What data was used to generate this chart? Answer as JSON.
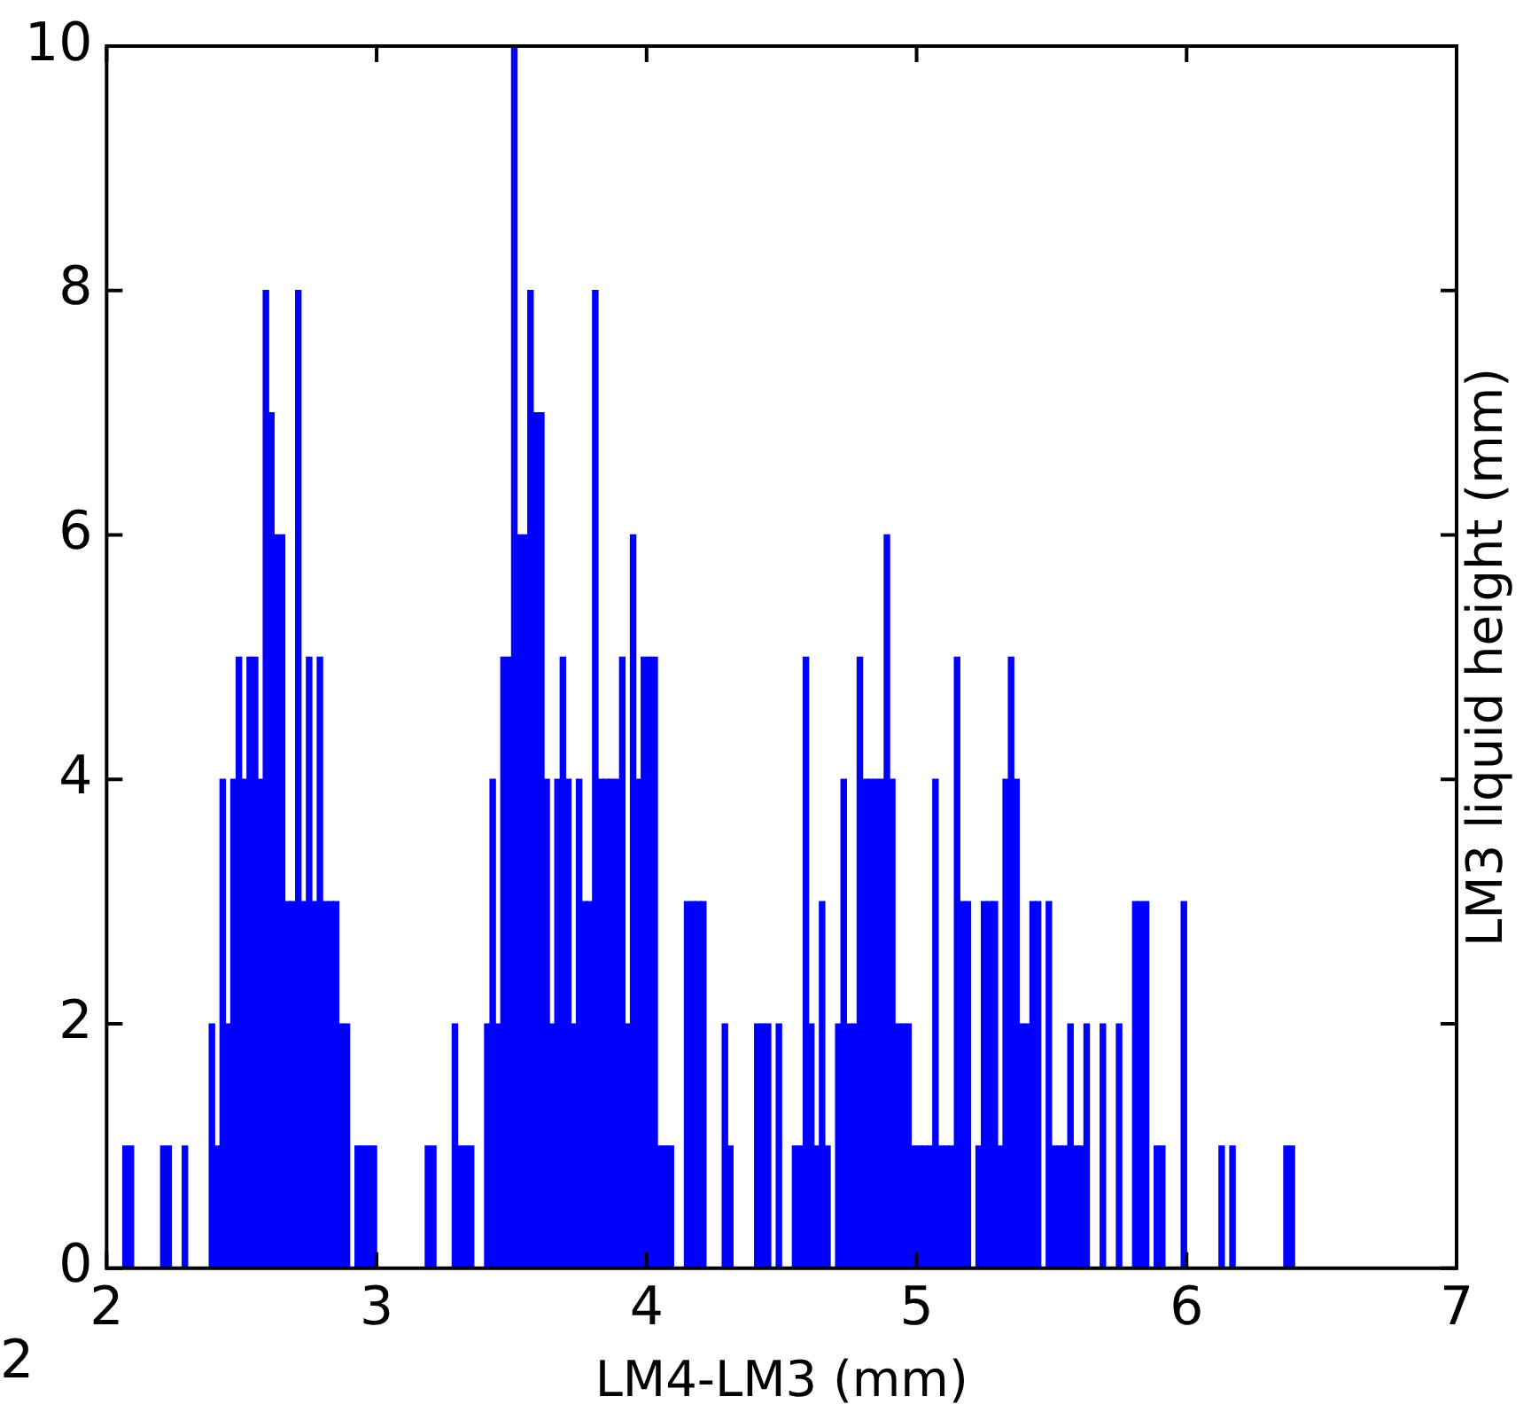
{
  "chart_data": {
    "type": "histogram",
    "xlabel": "LM4-LM3 (mm)",
    "ylabel": "LM3 liquid height (mm)",
    "color": "#0000ff",
    "bins": [
      2.0,
      2.02,
      2.04,
      2.06,
      2.08,
      2.1,
      2.12,
      2.14,
      2.16,
      2.18,
      2.2,
      2.22,
      2.24,
      2.26,
      2.28,
      2.3,
      2.32,
      2.34,
      2.36,
      2.38,
      2.4,
      2.42,
      2.44,
      2.46,
      2.48,
      2.5,
      2.52,
      2.54,
      2.56,
      2.58,
      2.6,
      2.62,
      2.64,
      2.66,
      2.68,
      2.7,
      2.72,
      2.74,
      2.76,
      2.78,
      2.8,
      2.82,
      2.84,
      2.86,
      2.88,
      2.9,
      2.92,
      2.94,
      2.96,
      2.98,
      3.0,
      3.02,
      3.04,
      3.06,
      3.08,
      3.1,
      3.12,
      3.14,
      3.16,
      3.18,
      3.2,
      3.22,
      3.24,
      3.26,
      3.28,
      3.3,
      3.32,
      3.34,
      3.36,
      3.38,
      3.4,
      3.42,
      3.44,
      3.46,
      3.48,
      3.5,
      3.52,
      3.54,
      3.56,
      3.58,
      3.6,
      3.62,
      3.64,
      3.66,
      3.68,
      3.7,
      3.72,
      3.74,
      3.76,
      3.78,
      3.8,
      3.82,
      3.84,
      3.86,
      3.88,
      3.9,
      3.92,
      3.94,
      3.96,
      3.98,
      4.0,
      4.02,
      4.04,
      4.06,
      4.08,
      4.1,
      4.12,
      4.14,
      4.16,
      4.18,
      4.2,
      4.22,
      4.24,
      4.26,
      4.28,
      4.3,
      4.32,
      4.34,
      4.36,
      4.38,
      4.4,
      4.42,
      4.44,
      4.46,
      4.48,
      4.5,
      4.52,
      4.54,
      4.56,
      4.58,
      4.6,
      4.62,
      4.64,
      4.66,
      4.68,
      4.7,
      4.72,
      4.74,
      4.76,
      4.78,
      4.8,
      4.82,
      4.84,
      4.86,
      4.88,
      4.9,
      4.92,
      4.94,
      4.96,
      4.98,
      5.0,
      5.02,
      5.04,
      5.06,
      5.08,
      5.1,
      5.12,
      5.14,
      5.16,
      5.18,
      5.2,
      5.22,
      5.24,
      5.26,
      5.28,
      5.3,
      5.32,
      5.34,
      5.36,
      5.38,
      5.4,
      5.42,
      5.44,
      5.46,
      5.48,
      5.5,
      5.52,
      5.54,
      5.56,
      5.58,
      5.6,
      5.62,
      5.64,
      5.66,
      5.68,
      5.7,
      5.72,
      5.74,
      5.76,
      5.78,
      5.8,
      5.82,
      5.84,
      5.86,
      5.88,
      5.9,
      5.92,
      5.94,
      5.96,
      5.98,
      6.0,
      6.02,
      6.04,
      6.06,
      6.08,
      6.1,
      6.12,
      6.14,
      6.16,
      6.18,
      6.2,
      6.22,
      6.24,
      6.26,
      6.28,
      6.3,
      6.32,
      6.34,
      6.36,
      6.38,
      6.4,
      6.42,
      6.44,
      6.46,
      6.48,
      6.5,
      6.52,
      6.54,
      6.56,
      6.58,
      6.6,
      6.62,
      6.64,
      6.66,
      6.68,
      6.7,
      6.72,
      6.74,
      6.76,
      6.78,
      6.8,
      6.82,
      6.84,
      6.86,
      6.88,
      6.9,
      6.92,
      6.94,
      6.96,
      6.98,
      7.0
    ],
    "values": [
      0,
      0,
      0,
      1,
      1,
      0,
      0,
      0,
      0,
      0,
      1,
      1,
      0,
      0,
      1,
      0,
      0,
      0,
      0,
      2,
      1,
      4,
      2,
      4,
      5,
      4,
      5,
      5,
      4,
      8,
      7,
      6,
      6,
      3,
      3,
      8,
      3,
      5,
      3,
      5,
      3,
      3,
      3,
      2,
      2,
      0,
      1,
      1,
      1,
      1,
      0,
      0,
      0,
      0,
      0,
      0,
      0,
      0,
      0,
      1,
      1,
      0,
      0,
      0,
      2,
      1,
      1,
      1,
      0,
      0,
      2,
      4,
      2,
      5,
      5,
      10,
      6,
      6,
      8,
      7,
      7,
      4,
      2,
      4,
      5,
      4,
      2,
      4,
      3,
      3,
      8,
      4,
      4,
      4,
      4,
      5,
      2,
      6,
      4,
      5,
      5,
      5,
      1,
      1,
      1,
      0,
      0,
      3,
      3,
      3,
      3,
      0,
      0,
      0,
      2,
      1,
      0,
      0,
      0,
      0,
      2,
      2,
      2,
      0,
      2,
      0,
      0,
      1,
      1,
      5,
      2,
      1,
      3,
      1,
      0,
      2,
      4,
      2,
      2,
      5,
      4,
      4,
      4,
      4,
      6,
      4,
      2,
      2,
      2,
      1,
      1,
      1,
      1,
      4,
      1,
      1,
      1,
      5,
      3,
      3,
      0,
      1,
      3,
      3,
      3,
      1,
      4,
      5,
      4,
      2,
      2,
      3,
      3,
      0,
      3,
      1,
      1,
      1,
      2,
      1,
      1,
      2,
      0,
      0,
      2,
      0,
      0,
      2,
      0,
      0,
      3,
      3,
      3,
      0,
      1,
      1,
      0,
      0,
      0,
      3,
      0,
      0,
      0,
      0,
      0,
      0,
      1,
      0,
      1,
      0,
      0,
      0,
      0,
      0,
      0,
      0,
      0,
      0,
      1,
      1,
      0,
      0,
      0,
      0,
      0,
      0,
      0,
      0,
      0,
      0,
      0,
      0,
      0,
      0,
      0,
      0,
      0,
      0,
      0,
      0,
      0,
      0,
      0,
      0,
      0,
      0,
      0,
      0,
      0,
      0
    ],
    "xlim": [
      2,
      7
    ],
    "xticks": [
      2,
      3,
      4,
      5,
      6,
      7
    ],
    "ylim": [
      0,
      10
    ],
    "yticks": [
      0,
      2,
      4,
      6,
      8,
      10
    ],
    "annotations": [
      "2"
    ]
  }
}
